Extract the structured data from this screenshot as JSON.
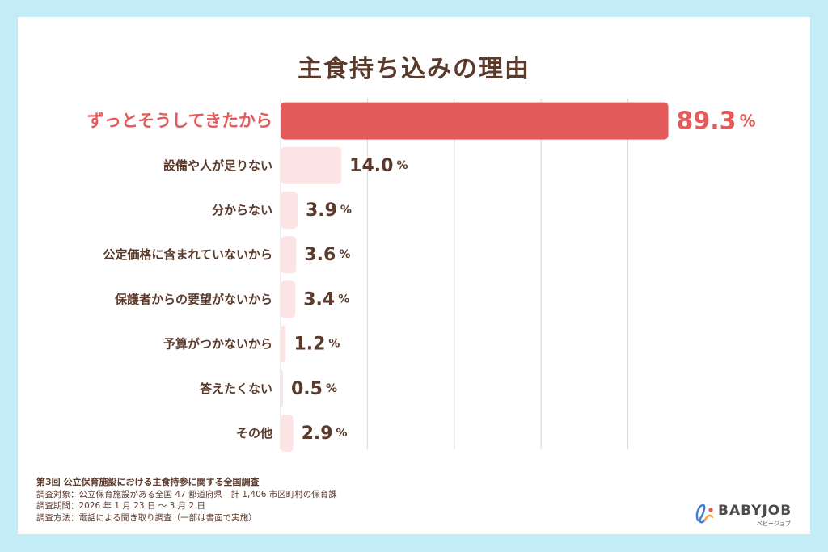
{
  "chart_data": {
    "type": "bar",
    "orientation": "horizontal",
    "title": "主食持ち込みの理由",
    "unit": "%",
    "categories": [
      "ずっとそうしてきたから",
      "設備や人が足りない",
      "分からない",
      "公定価格に含まれていないから",
      "保護者からの要望がないから",
      "予算がつかないから",
      "答えたくない",
      "その他"
    ],
    "values": [
      89.3,
      14.0,
      3.9,
      3.6,
      3.4,
      1.2,
      0.5,
      2.9
    ],
    "value_labels": [
      "89.3",
      "14.0",
      "3.9",
      "3.6",
      "3.4",
      "1.2",
      "0.5",
      "2.9"
    ],
    "xlim": [
      0,
      100
    ],
    "highlight_index": 0,
    "grid": true,
    "colors": {
      "highlight": "#e55a5a",
      "bar": "#fde4e4",
      "text": "#5b3a2c",
      "grid": "#d9d9d9"
    }
  },
  "notes": {
    "survey_title": "第3回 公立保育施設における主食持参に関する全国調査",
    "line1": "調査対象：公立保育施設がある全国 47 都道府県　計 1,406 市区町村の保育課",
    "line2": "調査期間：2026 年 1 月 23 日 ～ 3 月 2 日",
    "line3": "調査方法：電話による聞き取り調査（一部は書面で実施）"
  },
  "brand": {
    "name": "BABYJOB",
    "kana": "ベビージョブ"
  }
}
